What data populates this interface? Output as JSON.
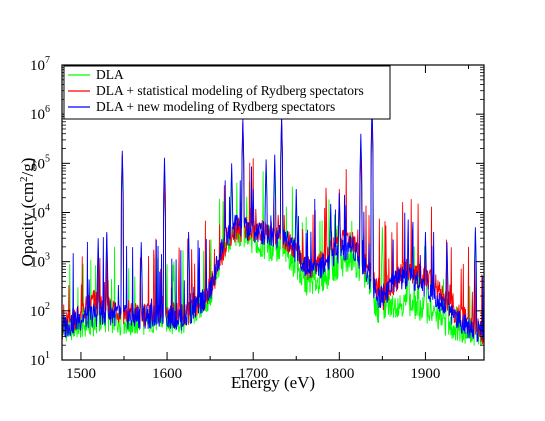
{
  "chart_data": {
    "type": "line",
    "xlabel": "Energy (eV)",
    "ylabel_main": "Opacity (cm",
    "ylabel_sup": "2",
    "ylabel_tail": "/g)",
    "xlim": [
      1478,
      1968
    ],
    "ylim": [
      10,
      10000000
    ],
    "yscale": "log",
    "x_ticks": [
      {
        "value": 1500,
        "label": "1500"
      },
      {
        "value": 1600,
        "label": "1600"
      },
      {
        "value": 1700,
        "label": "1700"
      },
      {
        "value": 1800,
        "label": "1800"
      },
      {
        "value": 1900,
        "label": "1900"
      }
    ],
    "y_ticks": [
      {
        "value": 10,
        "base": "10",
        "exp": "1"
      },
      {
        "value": 100,
        "base": "10",
        "exp": "2"
      },
      {
        "value": 1000,
        "base": "10",
        "exp": "3"
      },
      {
        "value": 10000,
        "base": "10",
        "exp": "4"
      },
      {
        "value": 100000,
        "base": "10",
        "exp": "5"
      },
      {
        "value": 1000000,
        "base": "10",
        "exp": "6"
      },
      {
        "value": 10000000,
        "base": "10",
        "exp": "7"
      }
    ],
    "legend_position": "top-left",
    "grid": false,
    "series": [
      {
        "name": "DLA",
        "color": "#00ff00",
        "baseline": [
          [
            1478,
            35
          ],
          [
            1500,
            40
          ],
          [
            1530,
            55
          ],
          [
            1560,
            45
          ],
          [
            1590,
            55
          ],
          [
            1620,
            50
          ],
          [
            1650,
            150
          ],
          [
            1665,
            1500
          ],
          [
            1680,
            3000
          ],
          [
            1700,
            2000
          ],
          [
            1720,
            1500
          ],
          [
            1740,
            1200
          ],
          [
            1760,
            300
          ],
          [
            1780,
            350
          ],
          [
            1800,
            700
          ],
          [
            1815,
            900
          ],
          [
            1830,
            400
          ],
          [
            1845,
            80
          ],
          [
            1870,
            120
          ],
          [
            1900,
            90
          ],
          [
            1930,
            40
          ],
          [
            1968,
            25
          ]
        ],
        "peaks": [
          [
            1520,
            2000
          ],
          [
            1530,
            3000
          ],
          [
            1548,
            100000
          ],
          [
            1570,
            2000
          ],
          [
            1597,
            70000
          ],
          [
            1608,
            1000
          ],
          [
            1625,
            3000
          ],
          [
            1675,
            70000
          ],
          [
            1688,
            600000
          ],
          [
            1700,
            20000
          ],
          [
            1715,
            100000
          ],
          [
            1725,
            80000
          ],
          [
            1733,
            600000
          ],
          [
            1750,
            20000
          ],
          [
            1790,
            10000
          ],
          [
            1800,
            20000
          ],
          [
            1825,
            300000
          ],
          [
            1838,
            1000000
          ],
          [
            1850,
            5000
          ],
          [
            1880,
            2000
          ],
          [
            1900,
            3000
          ],
          [
            1925,
            2000
          ],
          [
            1958,
            4000
          ]
        ]
      },
      {
        "name": "DLA + statistical modeling of Rydberg spectators",
        "color": "#ff0000",
        "baseline": [
          [
            1478,
            38
          ],
          [
            1500,
            80
          ],
          [
            1515,
            130
          ],
          [
            1530,
            100
          ],
          [
            1560,
            70
          ],
          [
            1590,
            80
          ],
          [
            1620,
            70
          ],
          [
            1640,
            120
          ],
          [
            1660,
            600
          ],
          [
            1670,
            3000
          ],
          [
            1690,
            4000
          ],
          [
            1710,
            3500
          ],
          [
            1730,
            3000
          ],
          [
            1750,
            1500
          ],
          [
            1765,
            600
          ],
          [
            1780,
            900
          ],
          [
            1800,
            2000
          ],
          [
            1815,
            2500
          ],
          [
            1830,
            800
          ],
          [
            1850,
            150
          ],
          [
            1875,
            600
          ],
          [
            1890,
            500
          ],
          [
            1910,
            300
          ],
          [
            1935,
            80
          ],
          [
            1968,
            30
          ]
        ],
        "peaks": [
          [
            1548,
            150000
          ],
          [
            1597,
            50000
          ],
          [
            1688,
            700000
          ],
          [
            1733,
            800000
          ],
          [
            1800,
            30000
          ],
          [
            1825,
            200000
          ],
          [
            1838,
            1000000
          ]
        ]
      },
      {
        "name": "DLA + new modeling of Rydberg spectators",
        "color": "#0000ff",
        "baseline": [
          [
            1478,
            37
          ],
          [
            1500,
            60
          ],
          [
            1530,
            80
          ],
          [
            1560,
            60
          ],
          [
            1590,
            70
          ],
          [
            1620,
            60
          ],
          [
            1650,
            200
          ],
          [
            1665,
            2000
          ],
          [
            1680,
            5000
          ],
          [
            1700,
            3500
          ],
          [
            1720,
            3000
          ],
          [
            1740,
            2500
          ],
          [
            1760,
            700
          ],
          [
            1780,
            700
          ],
          [
            1800,
            1500
          ],
          [
            1815,
            1800
          ],
          [
            1830,
            700
          ],
          [
            1845,
            150
          ],
          [
            1870,
            400
          ],
          [
            1890,
            350
          ],
          [
            1910,
            200
          ],
          [
            1935,
            60
          ],
          [
            1968,
            28
          ]
        ],
        "peaks": [
          [
            1520,
            3000
          ],
          [
            1530,
            4000
          ],
          [
            1548,
            180000
          ],
          [
            1570,
            2500
          ],
          [
            1597,
            130000
          ],
          [
            1625,
            4000
          ],
          [
            1675,
            100000
          ],
          [
            1688,
            800000
          ],
          [
            1700,
            30000
          ],
          [
            1715,
            120000
          ],
          [
            1725,
            150000
          ],
          [
            1733,
            900000
          ],
          [
            1750,
            30000
          ],
          [
            1790,
            15000
          ],
          [
            1800,
            25000
          ],
          [
            1825,
            400000
          ],
          [
            1838,
            1500000
          ],
          [
            1880,
            3000
          ],
          [
            1900,
            4000
          ],
          [
            1925,
            2500
          ],
          [
            1958,
            5000
          ]
        ]
      }
    ]
  }
}
